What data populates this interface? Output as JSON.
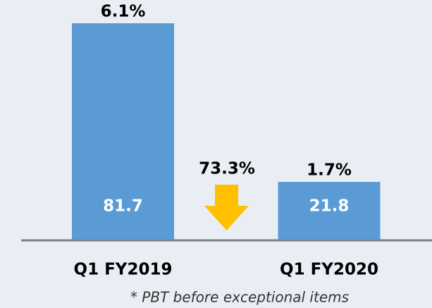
{
  "chart_data": {
    "type": "bar",
    "categories": [
      "Q1 FY2019",
      "Q1 FY2020"
    ],
    "values": [
      81.7,
      21.8
    ],
    "color": "#5b9bd5",
    "bar_annotations": [
      "6.1%",
      "1.7%"
    ],
    "change_annotation": "73.3%",
    "footnote": "* PBT before exceptional items"
  }
}
